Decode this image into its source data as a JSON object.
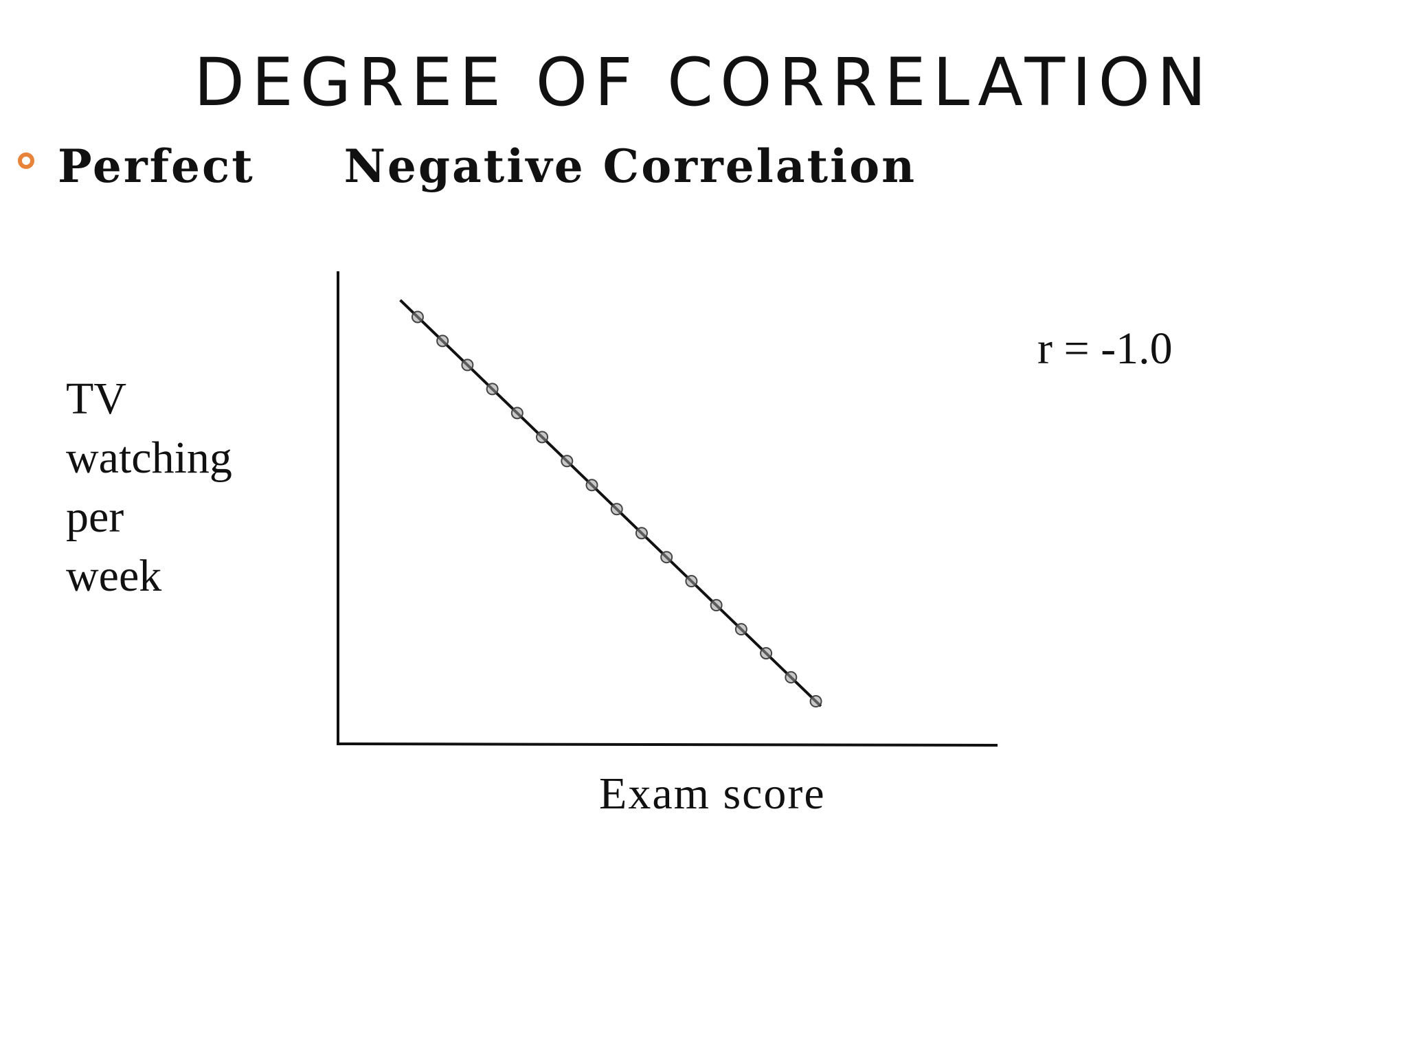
{
  "title": "DEGREE OF CORRELATION",
  "subtitle": "Perfect     Negative Correlation",
  "correlation_label": "r = -1.0",
  "colors": {
    "bullet": "#E8833A",
    "marker": "#9a9a9a",
    "line": "#111111"
  },
  "chart_data": {
    "type": "scatter",
    "xlabel": "Exam score",
    "ylabel": "TV\nwatching\nper\nweek",
    "grid": false,
    "x": [
      1,
      2,
      3,
      4,
      5,
      6,
      7,
      8,
      9,
      10,
      11,
      12,
      13,
      14,
      15,
      16,
      17
    ],
    "y": [
      17,
      16,
      15,
      14,
      13,
      12,
      11,
      10,
      9,
      8,
      7,
      6,
      5,
      4,
      3,
      2,
      1
    ],
    "trend_line": {
      "x": [
        0.3,
        17.2
      ],
      "y": [
        17.7,
        0.8
      ]
    },
    "xlim": [
      -2.2,
      24.3
    ],
    "ylim": [
      -0.8,
      18.9
    ]
  }
}
